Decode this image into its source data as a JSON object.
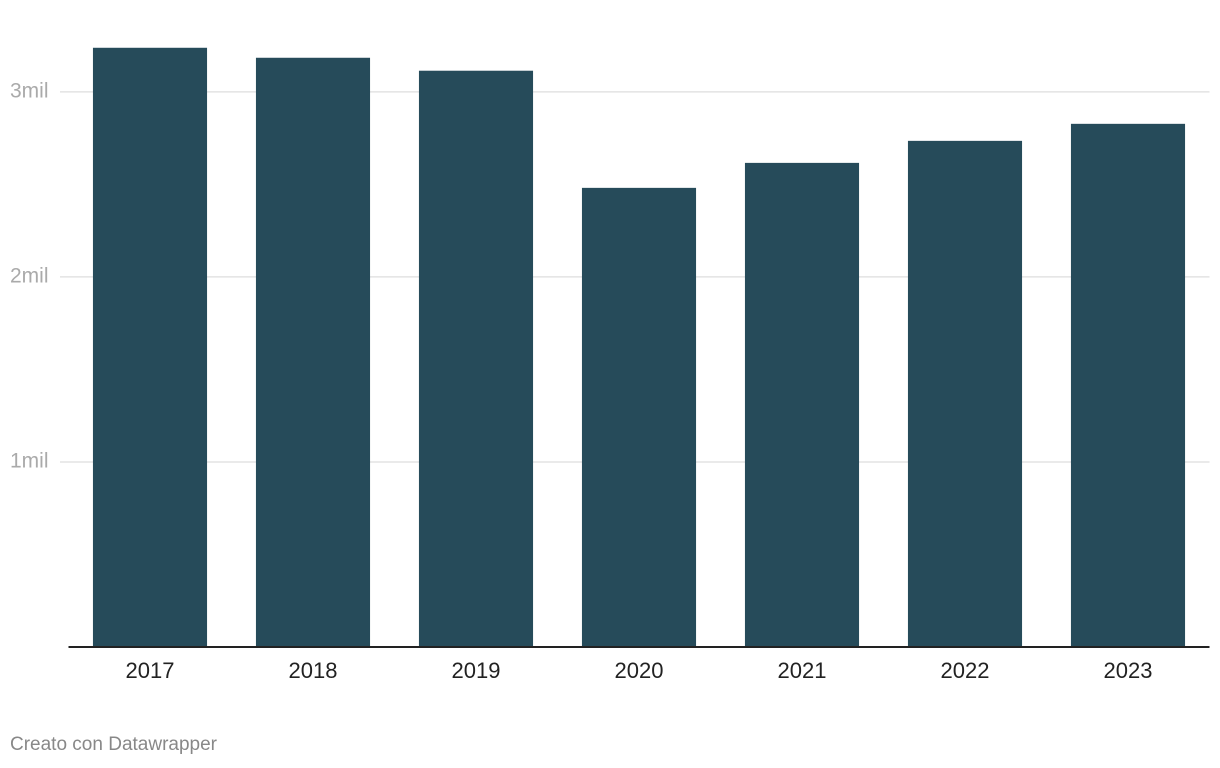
{
  "chart_data": {
    "type": "bar",
    "categories": [
      "2017",
      "2018",
      "2019",
      "2020",
      "2021",
      "2022",
      "2023"
    ],
    "values": [
      3238000,
      3184000,
      3114000,
      2481000,
      2616000,
      2735000,
      2827000
    ],
    "color": "#264b5a",
    "ylim": [
      0,
      3280000
    ],
    "yticks": [
      {
        "value": 1000000,
        "label": "1mil"
      },
      {
        "value": 2000000,
        "label": "2mil"
      },
      {
        "value": 3000000,
        "label": "3mil"
      }
    ],
    "grid": true,
    "credit": "Creato con Datawrapper"
  }
}
